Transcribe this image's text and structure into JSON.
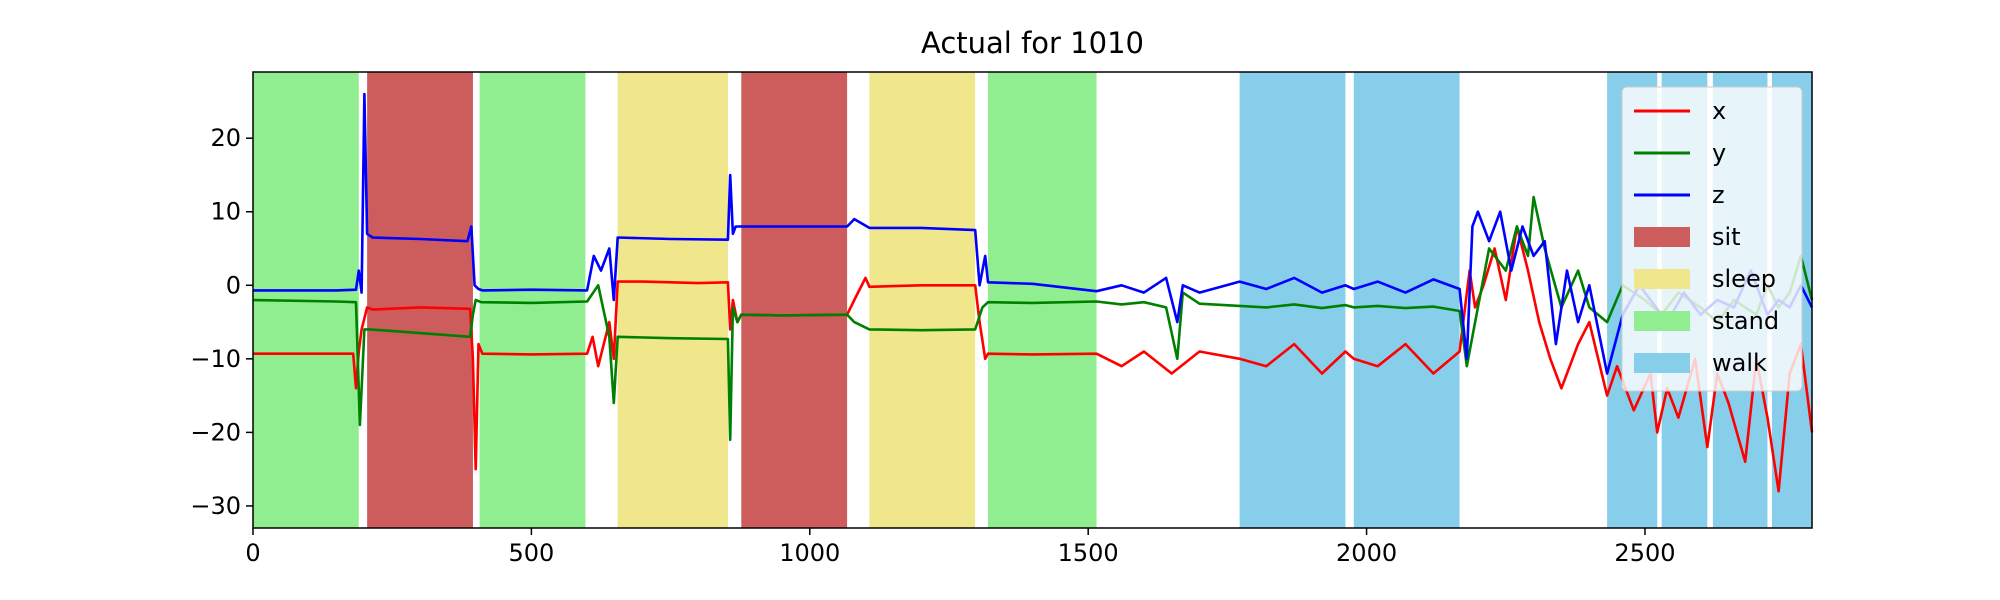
{
  "chart_data": {
    "type": "line",
    "title": "Actual for 1010",
    "xlabel": "",
    "ylabel": "",
    "xlim": [
      0,
      2800
    ],
    "ylim": [
      -33,
      29
    ],
    "x_ticks": [
      0,
      500,
      1000,
      1500,
      2000,
      2500
    ],
    "y_ticks": [
      -30,
      -20,
      -10,
      0,
      10,
      20
    ],
    "grid": false,
    "legend_position": "top-right",
    "activity_colors": {
      "sit": "#cd5c5c",
      "sleep": "#f0e68c",
      "stand": "#90ee90",
      "walk": "#87ceeb"
    },
    "activity_bands": [
      {
        "activity": "stand",
        "start": 0,
        "end": 190
      },
      {
        "activity": "sit",
        "start": 205,
        "end": 395
      },
      {
        "activity": "stand",
        "start": 407,
        "end": 597
      },
      {
        "activity": "sleep",
        "start": 655,
        "end": 853
      },
      {
        "activity": "sit",
        "start": 877,
        "end": 1067
      },
      {
        "activity": "sleep",
        "start": 1107,
        "end": 1297
      },
      {
        "activity": "stand",
        "start": 1320,
        "end": 1515
      },
      {
        "activity": "walk",
        "start": 1772,
        "end": 1962
      },
      {
        "activity": "walk",
        "start": 1977,
        "end": 2167
      },
      {
        "activity": "walk",
        "start": 2432,
        "end": 2522
      },
      {
        "activity": "walk",
        "start": 2530,
        "end": 2612
      },
      {
        "activity": "walk",
        "start": 2622,
        "end": 2720
      },
      {
        "activity": "walk",
        "start": 2728,
        "end": 2800
      }
    ],
    "series": [
      {
        "name": "x",
        "color": "#ff0000",
        "x": [
          0,
          150,
          180,
          185,
          190,
          195,
          205,
          215,
          300,
          390,
          395,
          400,
          405,
          412,
          500,
          600,
          610,
          620,
          640,
          648,
          655,
          700,
          800,
          853,
          857,
          862,
          870,
          877,
          950,
          1067,
          1080,
          1100,
          1107,
          1200,
          1297,
          1305,
          1315,
          1320,
          1400,
          1515,
          1560,
          1600,
          1650,
          1700,
          1772,
          1820,
          1870,
          1920,
          1962,
          1977,
          2020,
          2070,
          2120,
          2167,
          2185,
          2195,
          2210,
          2230,
          2250,
          2270,
          2290,
          2310,
          2330,
          2350,
          2380,
          2400,
          2432,
          2450,
          2480,
          2510,
          2522,
          2540,
          2560,
          2590,
          2612,
          2630,
          2650,
          2680,
          2700,
          2720,
          2740,
          2760,
          2780,
          2800
        ],
        "values": [
          -9.3,
          -9.3,
          -9.3,
          -14,
          -9,
          -6,
          -3,
          -3.3,
          -3,
          -3.2,
          -10,
          -25,
          -8,
          -9.3,
          -9.4,
          -9.3,
          -7,
          -11,
          -5,
          -10,
          0.5,
          0.5,
          0.3,
          0.4,
          -6,
          -2,
          -5,
          -4,
          -4.1,
          -4,
          -2,
          1,
          -0.2,
          0,
          0,
          -5,
          -10,
          -9.3,
          -9.4,
          -9.3,
          -11,
          -9,
          -12,
          -9,
          -10,
          -11,
          -8,
          -12,
          -9,
          -10,
          -11,
          -8,
          -12,
          -9,
          2,
          -3,
          0,
          5,
          -2,
          8,
          2,
          -5,
          -10,
          -14,
          -8,
          -5,
          -15,
          -11,
          -17,
          -12,
          -20,
          -14,
          -18,
          -10,
          -22,
          -12,
          -16,
          -24,
          -10,
          -18,
          -28,
          -12,
          -8,
          -20
        ]
      },
      {
        "name": "y",
        "color": "#008000",
        "x": [
          0,
          150,
          185,
          192,
          200,
          210,
          300,
          390,
          395,
          400,
          410,
          500,
          600,
          620,
          640,
          648,
          655,
          750,
          853,
          857,
          862,
          870,
          877,
          950,
          1067,
          1080,
          1107,
          1200,
          1297,
          1310,
          1320,
          1400,
          1515,
          1560,
          1600,
          1640,
          1660,
          1670,
          1700,
          1772,
          1820,
          1870,
          1920,
          1962,
          1977,
          2020,
          2070,
          2120,
          2167,
          2180,
          2200,
          2220,
          2250,
          2270,
          2290,
          2300,
          2320,
          2350,
          2380,
          2400,
          2432,
          2460,
          2500,
          2530,
          2560,
          2600,
          2630,
          2660,
          2700,
          2720,
          2740,
          2760,
          2780,
          2800
        ],
        "values": [
          -2,
          -2.2,
          -2.3,
          -19,
          -6,
          -6,
          -6.5,
          -7,
          -4,
          -2,
          -2.3,
          -2.4,
          -2.2,
          0,
          -7,
          -16,
          -7,
          -7.2,
          -7.3,
          -21,
          -3,
          -5,
          -4,
          -4.1,
          -4,
          -5,
          -6,
          -6.1,
          -6,
          -3,
          -2.3,
          -2.4,
          -2.2,
          -2.6,
          -2.3,
          -3,
          -10,
          -1,
          -2.5,
          -2.8,
          -3,
          -2.6,
          -3.1,
          -2.7,
          -3,
          -2.8,
          -3.1,
          -2.9,
          -3.5,
          -11,
          -3,
          5,
          2,
          8,
          4,
          12,
          5,
          -3,
          2,
          -3,
          -5,
          0,
          -2,
          -4,
          -1,
          -3,
          -5,
          -2,
          -4,
          0,
          -3,
          -1,
          4,
          -2
        ]
      },
      {
        "name": "z",
        "color": "#0000ff",
        "x": [
          0,
          150,
          185,
          190,
          195,
          200,
          205,
          215,
          300,
          385,
          392,
          398,
          405,
          412,
          500,
          600,
          612,
          625,
          640,
          648,
          655,
          750,
          853,
          857,
          862,
          867,
          877,
          950,
          1067,
          1080,
          1107,
          1200,
          1297,
          1305,
          1315,
          1320,
          1400,
          1515,
          1560,
          1600,
          1640,
          1660,
          1670,
          1700,
          1772,
          1820,
          1870,
          1920,
          1962,
          1977,
          2020,
          2070,
          2120,
          2167,
          2180,
          2190,
          2200,
          2220,
          2240,
          2260,
          2280,
          2300,
          2320,
          2340,
          2360,
          2380,
          2400,
          2432,
          2460,
          2490,
          2520,
          2540,
          2570,
          2600,
          2630,
          2660,
          2690,
          2720,
          2740,
          2760,
          2780,
          2800
        ],
        "values": [
          -0.7,
          -0.7,
          -0.6,
          2,
          -1,
          26,
          7,
          6.5,
          6.3,
          6,
          8,
          0,
          -0.5,
          -0.7,
          -0.6,
          -0.7,
          4,
          2,
          5,
          -2,
          6.5,
          6.3,
          6.2,
          15,
          7,
          8,
          8,
          8,
          8,
          9,
          7.8,
          7.8,
          7.5,
          0,
          4,
          0.4,
          0.2,
          -0.8,
          0,
          -1,
          1,
          -5,
          0,
          -1,
          0.5,
          -0.5,
          1,
          -1,
          0,
          -0.5,
          0.5,
          -1,
          0.8,
          -0.5,
          -10,
          8,
          10,
          6,
          10,
          2,
          8,
          4,
          6,
          -8,
          2,
          -5,
          0,
          -12,
          -4,
          0,
          -3,
          -5,
          -1,
          -4,
          -2,
          -3,
          2,
          -4,
          -2,
          -3,
          0,
          -3
        ]
      }
    ],
    "legend": [
      {
        "label": "x",
        "kind": "line",
        "color": "#ff0000"
      },
      {
        "label": "y",
        "kind": "line",
        "color": "#008000"
      },
      {
        "label": "z",
        "kind": "line",
        "color": "#0000ff"
      },
      {
        "label": "sit",
        "kind": "patch",
        "color": "#cd5c5c"
      },
      {
        "label": "sleep",
        "kind": "patch",
        "color": "#f0e68c"
      },
      {
        "label": "stand",
        "kind": "patch",
        "color": "#90ee90"
      },
      {
        "label": "walk",
        "kind": "patch",
        "color": "#87ceeb"
      }
    ]
  }
}
